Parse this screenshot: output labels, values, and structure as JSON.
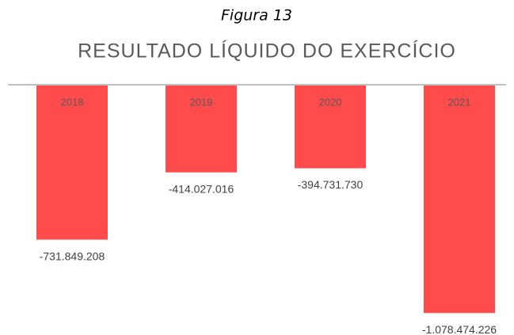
{
  "chart_data": {
    "type": "bar",
    "caption": "Figura 13",
    "title": "RESULTADO LÍQUIDO DO EXERCÍCIO",
    "categories": [
      "2018",
      "2019",
      "2020",
      "2021"
    ],
    "values": [
      -731849208,
      -414027016,
      -394731730,
      -1078474226
    ],
    "value_labels": [
      "-731.849.208",
      "-414.027.016",
      "-394.731.730",
      "-1.078.474.226"
    ],
    "color": "#ff4b4b",
    "ylim": [
      -1100000000,
      0
    ]
  }
}
